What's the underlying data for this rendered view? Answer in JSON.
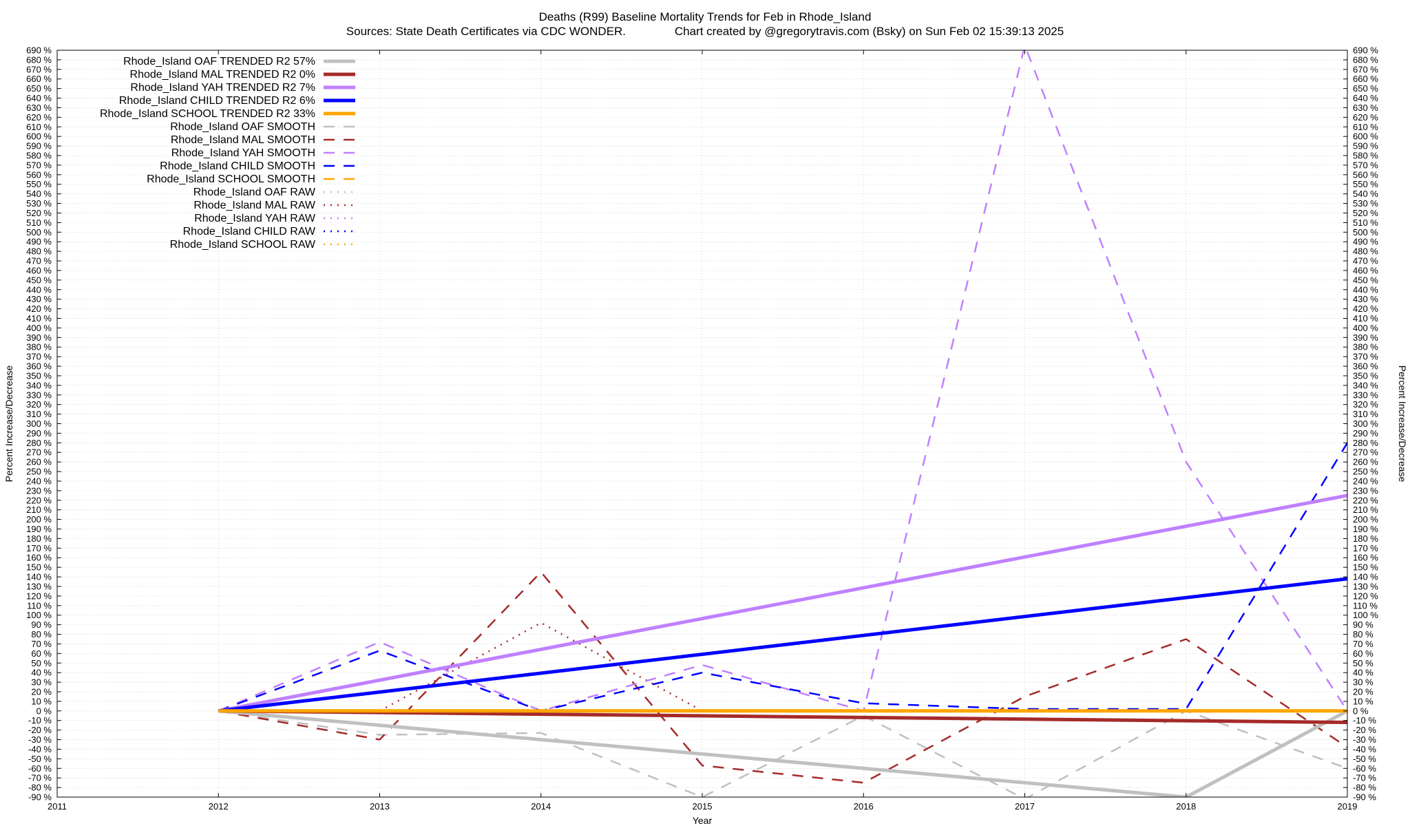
{
  "title": "Deaths (R99)  Baseline Mortality Trends for Feb in Rhode_Island",
  "subtitle": "Sources: State Death Certificates via CDC WONDER.               Chart created by @gregorytravis.com (Bsky) on Sun Feb 02 15:39:13 2025",
  "chart_data": {
    "type": "line",
    "title": "Deaths (R99)  Baseline Mortality Trends for Feb in Rhode_Island",
    "subtitle": "Sources: State Death Certificates via CDC WONDER.               Chart created by @gregorytravis.com (Bsky) on Sun Feb 02 15:39:13 2025",
    "xlabel": "Year",
    "ylabel": "Percent Increase/Decrease",
    "y2label": "Percent Increase/Decrease",
    "xlim": [
      2011,
      2019
    ],
    "ylim": [
      -90,
      690
    ],
    "x_ticks": [
      2011,
      2012,
      2013,
      2014,
      2015,
      2016,
      2017,
      2018,
      2019
    ],
    "y_tick_step": 10,
    "y_tick_suffix": " %",
    "grid": true,
    "legend_position": "top-left",
    "series": [
      {
        "name": "Rhode_Island OAF TRENDED R2  57%",
        "color": "#c0c0c0",
        "style": "trend",
        "x": [
          2012,
          2018,
          2019
        ],
        "y": [
          0,
          -90,
          0
        ]
      },
      {
        "name": "Rhode_Island MAL TRENDED R2   0%",
        "color": "#a52a2a",
        "style": "trend",
        "x": [
          2012,
          2019
        ],
        "y": [
          0,
          -12
        ]
      },
      {
        "name": "Rhode_Island YAH TRENDED R2   7%",
        "color": "#c080ff",
        "style": "trend",
        "x": [
          2012,
          2019
        ],
        "y": [
          0,
          225
        ]
      },
      {
        "name": "Rhode_Island CHILD TRENDED R2   6%",
        "color": "#0000ff",
        "style": "trend",
        "x": [
          2012,
          2019
        ],
        "y": [
          0,
          138
        ]
      },
      {
        "name": "Rhode_Island SCHOOL TRENDED R2  33%",
        "color": "#ffa500",
        "style": "trend",
        "x": [
          2012,
          2019
        ],
        "y": [
          0,
          0
        ]
      },
      {
        "name": "Rhode_Island OAF SMOOTH",
        "color": "#c0c0c0",
        "style": "smooth",
        "x": [
          2012,
          2013,
          2014,
          2015,
          2016,
          2017,
          2018,
          2019
        ],
        "y": [
          0,
          -25,
          -23,
          -90,
          -5,
          -92,
          0,
          -60
        ]
      },
      {
        "name": "Rhode_Island MAL SMOOTH",
        "color": "#a52a2a",
        "style": "smooth",
        "x": [
          2012,
          2013,
          2014,
          2015,
          2016,
          2017,
          2018,
          2019
        ],
        "y": [
          0,
          -30,
          145,
          -57,
          -75,
          15,
          75,
          -38
        ]
      },
      {
        "name": "Rhode_Island YAH SMOOTH",
        "color": "#c080ff",
        "style": "smooth",
        "x": [
          2012,
          2013,
          2014,
          2015,
          2016,
          2017,
          2018,
          2019
        ],
        "y": [
          0,
          72,
          0,
          48,
          0,
          695,
          260,
          0
        ]
      },
      {
        "name": "Rhode_Island CHILD SMOOTH",
        "color": "#0000ff",
        "style": "smooth",
        "x": [
          2012,
          2013,
          2014,
          2015,
          2016,
          2017,
          2018,
          2019
        ],
        "y": [
          0,
          63,
          0,
          40,
          8,
          2,
          2,
          280
        ]
      },
      {
        "name": "Rhode_Island SCHOOL SMOOTH",
        "color": "#ffa500",
        "style": "smooth",
        "x": [
          2012,
          2019
        ],
        "y": [
          0,
          0
        ]
      },
      {
        "name": "Rhode_Island OAF RAW",
        "color": "#c0c0c0",
        "style": "raw",
        "x": [],
        "y": []
      },
      {
        "name": "Rhode_Island MAL RAW",
        "color": "#a52a2a",
        "style": "raw",
        "x": [
          2013,
          2014,
          2015
        ],
        "y": [
          0,
          92,
          0
        ]
      },
      {
        "name": "Rhode_Island YAH RAW",
        "color": "#c080ff",
        "style": "raw",
        "x": [],
        "y": []
      },
      {
        "name": "Rhode_Island CHILD RAW",
        "color": "#0000ff",
        "style": "raw",
        "x": [],
        "y": []
      },
      {
        "name": "Rhode_Island SCHOOL RAW",
        "color": "#ffa500",
        "style": "raw",
        "x": [],
        "y": []
      }
    ]
  }
}
